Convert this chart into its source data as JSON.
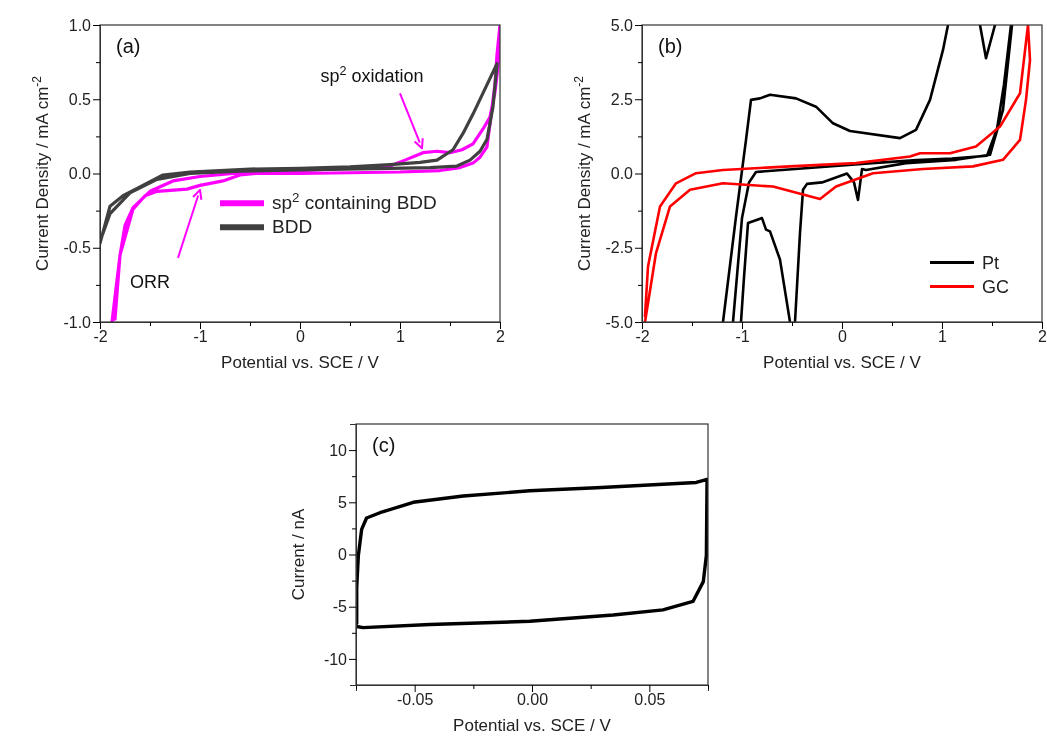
{
  "chart_data": [
    {
      "type": "line",
      "xlabel": "Potential vs. SCE / V",
      "ylabel": "Current Density / mA cm$^{-2}$",
      "xlim": [
        -2,
        2
      ],
      "ylim": [
        -1,
        1
      ],
      "xticks": [
        -2,
        {
          "value": -1.5,
          "label": null
        },
        -1,
        {
          "value": -0.5,
          "label": null
        },
        0,
        {
          "value": 0.5,
          "label": null
        },
        1,
        {
          "value": 1.5,
          "label": null
        },
        2
      ],
      "yticks": [
        {
          "value": -1,
          "label": "-1.0"
        },
        {
          "value": -0.75,
          "label": null
        },
        {
          "value": -0.5,
          "label": "-0.5"
        },
        {
          "value": -0.25,
          "label": null
        },
        {
          "value": 0,
          "label": "0.0"
        },
        {
          "value": 0.25,
          "label": null
        },
        {
          "value": 0.5,
          "label": "0.5"
        },
        {
          "value": 0.75,
          "label": null
        },
        {
          "value": 1,
          "label": "1.0"
        }
      ],
      "legend": "right",
      "grid": false,
      "annotations": [
        "(a)",
        {
          "text": "sp$^{2}$ oxidation",
          "x": 1.22,
          "y": 0.17
        },
        {
          "text": "ORR",
          "x": -1.0,
          "y": -0.11
        }
      ],
      "series": [
        {
          "name": "sp$^{2}$ containing BDD",
          "color": "#ff00ff",
          "x": [
            -1.88,
            -1.8,
            -1.67,
            -1.55,
            -1.43,
            -1.13,
            -1.0,
            -0.77,
            -0.6,
            -0.3,
            0.3,
            0.9,
            1.05,
            1.23,
            1.37,
            1.5,
            1.62,
            1.73,
            1.83,
            1.9,
            1.95,
            1.98,
            2.0,
            1.97,
            1.95,
            1.87,
            1.8,
            1.73,
            1.6,
            1.4,
            1.0,
            0,
            -0.67,
            -1.0,
            -1.27,
            -1.5,
            -1.67,
            -1.75,
            -1.8,
            -1.85
          ],
          "values": [
            -1.0,
            -0.55,
            -0.24,
            -0.15,
            -0.12,
            -0.105,
            -0.08,
            -0.05,
            -0.01,
            0.01,
            0.03,
            0.05,
            0.09,
            0.14,
            0.15,
            0.14,
            0.16,
            0.2,
            0.3,
            0.38,
            0.55,
            0.72,
            1.0,
            0.8,
            0.6,
            0.18,
            0.11,
            0.07,
            0.04,
            0.02,
            0.01,
            0.0,
            0.0,
            -0.02,
            -0.05,
            -0.12,
            -0.23,
            -0.35,
            -0.55,
            -0.98
          ]
        },
        {
          "name": "BDD",
          "color": "#404040",
          "x": [
            -2.0,
            -1.9,
            -1.77,
            -1.6,
            -1.37,
            -1.1,
            -0.5,
            0,
            0.5,
            0.9,
            1.2,
            1.37,
            1.53,
            1.63,
            1.73,
            1.85,
            1.97,
            1.93,
            1.87,
            1.8,
            1.7,
            1.57,
            1.3,
            0.9,
            0,
            -0.6,
            -1.1,
            -1.43,
            -1.7,
            -1.9,
            -1.98
          ],
          "values": [
            -0.47,
            -0.22,
            -0.15,
            -0.09,
            -0.01,
            0.01,
            0.03,
            0.035,
            0.045,
            0.06,
            0.075,
            0.09,
            0.16,
            0.27,
            0.4,
            0.57,
            0.74,
            0.45,
            0.23,
            0.15,
            0.09,
            0.05,
            0.04,
            0.035,
            0.025,
            0.015,
            0.0,
            -0.04,
            -0.13,
            -0.27,
            -0.42
          ]
        }
      ]
    },
    {
      "type": "line",
      "xlabel": "Potential vs. SCE / V",
      "ylabel": "Current Density / mA cm$^{-2}$",
      "xlim": [
        -2,
        2
      ],
      "ylim": [
        -5,
        5
      ],
      "xticks": [
        -2,
        {
          "value": -1.5,
          "label": null
        },
        -1,
        {
          "value": -0.5,
          "label": null
        },
        0,
        {
          "value": 0.5,
          "label": null
        },
        1,
        {
          "value": 1.5,
          "label": null
        },
        2
      ],
      "yticks": [
        {
          "value": -5,
          "label": "-5.0"
        },
        {
          "value": -3.75,
          "label": null
        },
        {
          "value": -2.5,
          "label": "-2.5"
        },
        {
          "value": -1.25,
          "label": null
        },
        {
          "value": 0,
          "label": "0.0"
        },
        {
          "value": 1.25,
          "label": null
        },
        {
          "value": 2.5,
          "label": "2.5"
        },
        {
          "value": 3.75,
          "label": null
        },
        {
          "value": 5,
          "label": "5.0"
        }
      ],
      "legend": "bottom right",
      "grid": false,
      "annotations": [
        "(b)"
      ],
      "series": [
        {
          "name": "Pt",
          "color": "#000000",
          "x": [
            -1.19,
            -1.06,
            -0.96,
            -0.91,
            -0.82,
            -0.72,
            -0.46,
            -0.26,
            -0.09,
            0.08,
            0.58,
            0.74,
            0.88,
            1.01,
            1.06,
            1.2,
            1.38,
            1.44,
            1.53,
            1.6,
            1.7,
            1.61,
            1.48,
            1.14,
            0.64,
            0.24,
            0.2,
            0.16,
            0.12,
            0.05,
            -0.2,
            -0.35,
            -0.39,
            -0.42,
            -0.47,
            -0.5,
            -0.52,
            -0.62,
            -0.72,
            -0.76,
            -0.8,
            -0.84,
            -0.94,
            -0.98,
            -1.01,
            -1.05,
            -1.09,
            -1.0,
            -0.93,
            -0.86,
            -0.6,
            -0.2,
            0.3,
            0.75,
            1.1,
            1.45,
            1.55,
            1.62,
            1.69
          ],
          "values": [
            -5,
            -1.45,
            1.13,
            2.48,
            2.53,
            2.65,
            2.53,
            2.25,
            1.69,
            1.43,
            1.19,
            1.47,
            2.48,
            4.16,
            5.0,
            null,
            5.0,
            3.88,
            5.0,
            null,
            5.0,
            2.14,
            0.63,
            0.46,
            0.35,
            0.12,
            0.15,
            -0.89,
            -0.3,
            0.0,
            -0.3,
            -0.35,
            -0.55,
            -2.0,
            -5.0,
            null,
            -5.0,
            -2.9,
            -1.95,
            -1.89,
            -1.5,
            -1.55,
            -1.67,
            -3.5,
            -5.0,
            null,
            -5.0,
            -1.5,
            -0.3,
            0.05,
            0.12,
            0.22,
            0.35,
            0.45,
            0.5,
            0.6,
            1.5,
            3.0,
            5.0
          ]
        },
        {
          "name": "GC",
          "color": "#ff0000",
          "x": [
            -1.97,
            -1.86,
            -1.72,
            -1.52,
            -1.19,
            -0.69,
            -0.22,
            -0.06,
            0.31,
            0.81,
            1.31,
            1.61,
            1.78,
            1.84,
            1.88,
            1.86,
            1.78,
            1.58,
            1.34,
            1.08,
            0.78,
            0.68,
            0.14,
            -0.52,
            -1.19,
            -1.46,
            -1.66,
            -1.82,
            -1.94,
            -1.97
          ],
          "values": [
            -5,
            -2.68,
            -1.11,
            -0.55,
            -0.33,
            -0.44,
            -0.86,
            -0.44,
            0.01,
            0.15,
            0.24,
            0.46,
            1.13,
            2.48,
            3.82,
            5.0,
            2.7,
            1.58,
            0.91,
            0.68,
            0.68,
            0.57,
            0.35,
            0.24,
            0.12,
            0.01,
            -0.33,
            -1.11,
            -3.13,
            -4.8
          ]
        }
      ]
    },
    {
      "type": "line",
      "xlabel": "Potential vs. SCE / V",
      "ylabel": "Current / nA",
      "xlim": [
        -0.075,
        0.075
      ],
      "ylim": [
        -12.5,
        12.5
      ],
      "xticks": [
        {
          "value": -0.075,
          "label": null
        },
        {
          "value": -0.05,
          "label": "-0.05"
        },
        {
          "value": -0.025,
          "label": null
        },
        {
          "value": 0,
          "label": "0.00"
        },
        {
          "value": 0.025,
          "label": null
        },
        {
          "value": 0.05,
          "label": "0.05"
        },
        {
          "value": 0.075,
          "label": null
        }
      ],
      "yticks": [
        -10,
        {
          "value": -7.5,
          "label": null
        },
        -5,
        {
          "value": -2.5,
          "label": null
        },
        0,
        {
          "value": 2.5,
          "label": null
        },
        5,
        {
          "value": 7.5,
          "label": null
        },
        10
      ],
      "grid": false,
      "annotations": [
        "(c)"
      ],
      "series": [
        {
          "color": "#000000",
          "x": [
            -0.0747,
            -0.072,
            -0.0435,
            -0.001,
            0.0346,
            0.0558,
            0.0686,
            0.073,
            0.0743,
            0.0746,
            0.07,
            0.0275,
            -0.001,
            -0.0293,
            -0.0506,
            -0.0648,
            -0.0705,
            -0.0726,
            -0.074,
            -0.0747,
            -0.0747
          ],
          "values": [
            -6.9,
            -7.0,
            -6.7,
            -6.4,
            -5.8,
            -5.3,
            -4.5,
            -2.6,
            -0.1,
            7.2,
            6.9,
            6.4,
            6.1,
            5.6,
            5.0,
            4.0,
            3.5,
            2.4,
            -0.1,
            -3.2,
            -6.6
          ]
        }
      ]
    }
  ]
}
